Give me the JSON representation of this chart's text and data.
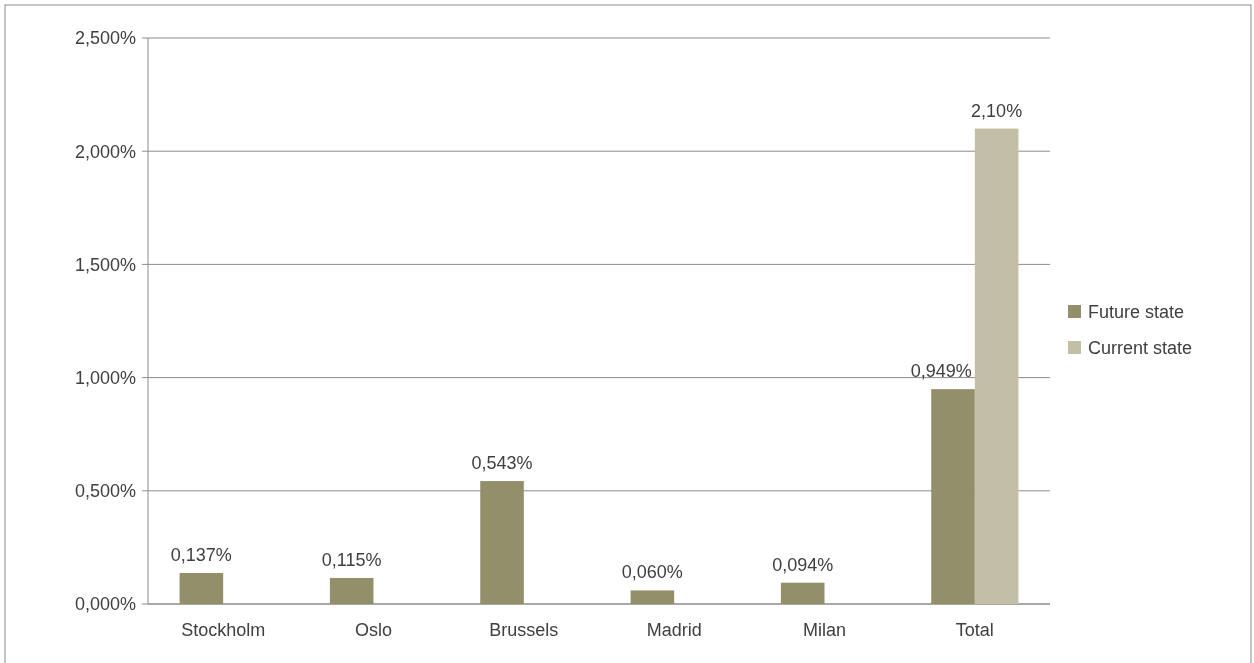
{
  "chart_data": {
    "type": "bar",
    "categories": [
      "Stockholm",
      "Oslo",
      "Brussels",
      "Madrid",
      "Milan",
      "Total"
    ],
    "series": [
      {
        "name": "Future state",
        "color": "#948f6b",
        "values": [
          0.137,
          0.115,
          0.543,
          0.06,
          0.094,
          0.949
        ],
        "value_labels": [
          "0,137%",
          "0,115%",
          "0,543%",
          "0,060%",
          "0,094%",
          "0,949%"
        ]
      },
      {
        "name": "Current state",
        "color": "#c3bfa6",
        "values": [
          null,
          null,
          null,
          null,
          null,
          2.1
        ],
        "value_labels": [
          null,
          null,
          null,
          null,
          null,
          "2,10%"
        ]
      }
    ],
    "ylim": [
      0,
      2.5
    ],
    "yticks": [
      {
        "value": 0,
        "label": "0,000%"
      },
      {
        "value": 0.5,
        "label": "0,500%"
      },
      {
        "value": 1,
        "label": "1,000%"
      },
      {
        "value": 1.5,
        "label": "1,500%"
      },
      {
        "value": 2,
        "label": "2,000%"
      },
      {
        "value": 2.5,
        "label": "2,500%"
      }
    ],
    "grid": "y",
    "legend": "right"
  }
}
